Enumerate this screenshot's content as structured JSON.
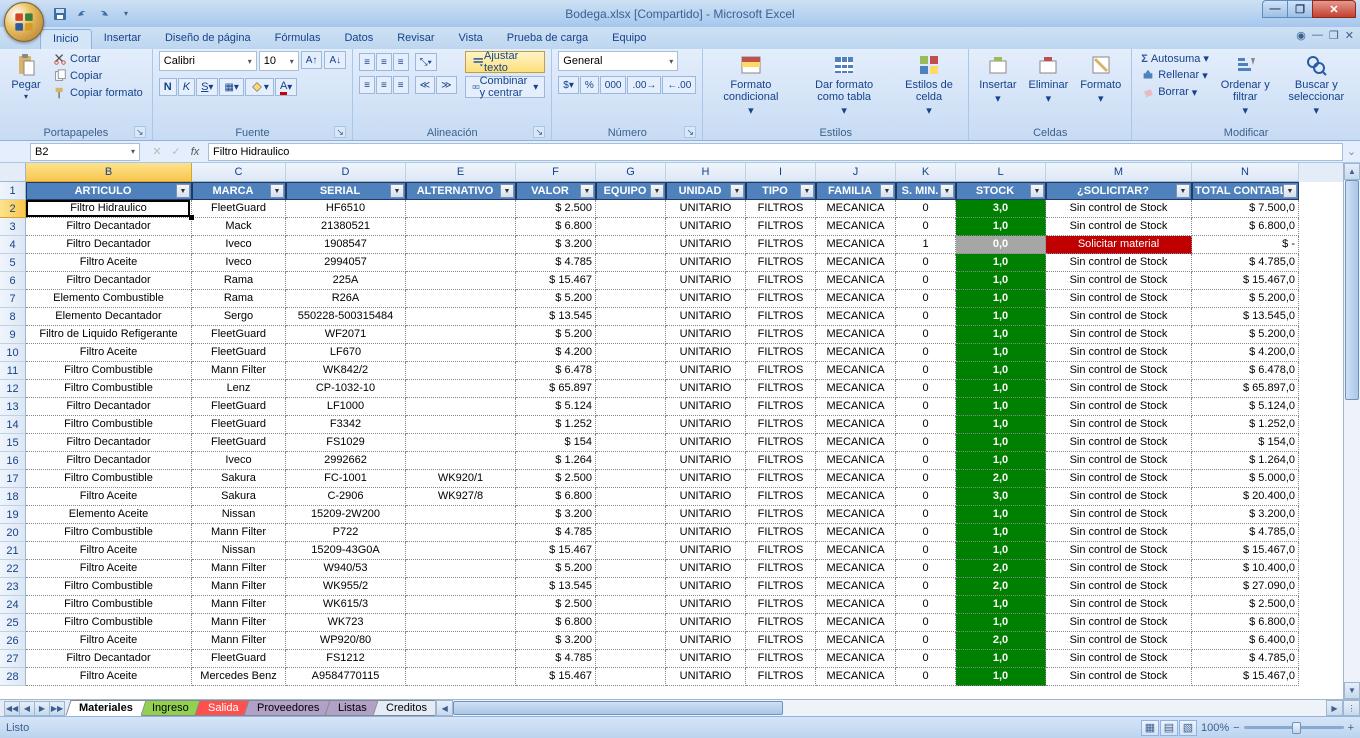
{
  "window": {
    "title": "Bodega.xlsx  [Compartido] - Microsoft Excel"
  },
  "tabs": {
    "items": [
      "Inicio",
      "Insertar",
      "Diseño de página",
      "Fórmulas",
      "Datos",
      "Revisar",
      "Vista",
      "Prueba de carga",
      "Equipo"
    ],
    "active": 0
  },
  "ribbon": {
    "clipboard": {
      "paste": "Pegar",
      "cut": "Cortar",
      "copy": "Copiar",
      "format_painter": "Copiar formato",
      "label": "Portapapeles"
    },
    "font": {
      "name": "Calibri",
      "size": "10",
      "label": "Fuente"
    },
    "alignment": {
      "wrap": "Ajustar texto",
      "merge": "Combinar y centrar",
      "label": "Alineación"
    },
    "number": {
      "format": "General",
      "label": "Número"
    },
    "styles": {
      "cond": "Formato condicional",
      "table": "Dar formato como tabla",
      "cell": "Estilos de celda",
      "label": "Estilos"
    },
    "cells": {
      "insert": "Insertar",
      "delete": "Eliminar",
      "format": "Formato",
      "label": "Celdas"
    },
    "editing": {
      "sum": "Autosuma",
      "fill": "Rellenar",
      "clear": "Borrar",
      "sort": "Ordenar y filtrar",
      "find": "Buscar y seleccionar",
      "label": "Modificar"
    }
  },
  "namebox": "B2",
  "formula": "Filtro Hidraulico",
  "columns": [
    {
      "letter": "B",
      "width": 166,
      "title": "ARTICULO",
      "sel": true
    },
    {
      "letter": "C",
      "width": 94,
      "title": "MARCA"
    },
    {
      "letter": "D",
      "width": 120,
      "title": "SERIAL"
    },
    {
      "letter": "E",
      "width": 110,
      "title": "ALTERNATIVO"
    },
    {
      "letter": "F",
      "width": 80,
      "title": "VALOR"
    },
    {
      "letter": "G",
      "width": 70,
      "title": "EQUIPO"
    },
    {
      "letter": "H",
      "width": 80,
      "title": "UNIDAD"
    },
    {
      "letter": "I",
      "width": 70,
      "title": "TIPO"
    },
    {
      "letter": "J",
      "width": 80,
      "title": "FAMILIA"
    },
    {
      "letter": "K",
      "width": 60,
      "title": "S. MIN."
    },
    {
      "letter": "L",
      "width": 90,
      "title": "STOCK"
    },
    {
      "letter": "M",
      "width": 146,
      "title": "¿SOLICITAR?"
    },
    {
      "letter": "N",
      "width": 107,
      "title": "TOTAL CONTABLE"
    }
  ],
  "rows": [
    {
      "n": 2,
      "d": [
        "Filtro Hidraulico",
        "FleetGuard",
        "HF6510",
        "",
        "$      2.500",
        "",
        "UNITARIO",
        "FILTROS",
        "MECANICA",
        "0",
        "3,0",
        "Sin control de Stock",
        "$           7.500,0"
      ]
    },
    {
      "n": 3,
      "d": [
        "Filtro Decantador",
        "Mack",
        "21380521",
        "",
        "$      6.800",
        "",
        "UNITARIO",
        "FILTROS",
        "MECANICA",
        "0",
        "1,0",
        "Sin control de Stock",
        "$           6.800,0"
      ]
    },
    {
      "n": 4,
      "d": [
        "Filtro Decantador",
        "Iveco",
        "1908547",
        "",
        "$      3.200",
        "",
        "UNITARIO",
        "FILTROS",
        "MECANICA",
        "1",
        "0,0",
        "Solicitar material",
        "$                  -"
      ],
      "stock": "gray",
      "sol": "red"
    },
    {
      "n": 5,
      "d": [
        "Filtro Aceite",
        "Iveco",
        "2994057",
        "",
        "$      4.785",
        "",
        "UNITARIO",
        "FILTROS",
        "MECANICA",
        "0",
        "1,0",
        "Sin control de Stock",
        "$           4.785,0"
      ]
    },
    {
      "n": 6,
      "d": [
        "Filtro Decantador",
        "Rama",
        "225A",
        "",
        "$    15.467",
        "",
        "UNITARIO",
        "FILTROS",
        "MECANICA",
        "0",
        "1,0",
        "Sin control de Stock",
        "$         15.467,0"
      ]
    },
    {
      "n": 7,
      "d": [
        "Elemento Combustible",
        "Rama",
        "R26A",
        "",
        "$      5.200",
        "",
        "UNITARIO",
        "FILTROS",
        "MECANICA",
        "0",
        "1,0",
        "Sin control de Stock",
        "$           5.200,0"
      ]
    },
    {
      "n": 8,
      "d": [
        "Elemento Decantador",
        "Sergo",
        "550228-500315484",
        "",
        "$    13.545",
        "",
        "UNITARIO",
        "FILTROS",
        "MECANICA",
        "0",
        "1,0",
        "Sin control de Stock",
        "$         13.545,0"
      ]
    },
    {
      "n": 9,
      "d": [
        "Filtro de Liquido Refigerante",
        "FleetGuard",
        "WF2071",
        "",
        "$      5.200",
        "",
        "UNITARIO",
        "FILTROS",
        "MECANICA",
        "0",
        "1,0",
        "Sin control de Stock",
        "$           5.200,0"
      ]
    },
    {
      "n": 10,
      "d": [
        "Filtro Aceite",
        "FleetGuard",
        "LF670",
        "",
        "$      4.200",
        "",
        "UNITARIO",
        "FILTROS",
        "MECANICA",
        "0",
        "1,0",
        "Sin control de Stock",
        "$           4.200,0"
      ]
    },
    {
      "n": 11,
      "d": [
        "Filtro Combustible",
        "Mann Filter",
        "WK842/2",
        "",
        "$      6.478",
        "",
        "UNITARIO",
        "FILTROS",
        "MECANICA",
        "0",
        "1,0",
        "Sin control de Stock",
        "$           6.478,0"
      ]
    },
    {
      "n": 12,
      "d": [
        "Filtro Combustible",
        "Lenz",
        "CP-1032-10",
        "",
        "$    65.897",
        "",
        "UNITARIO",
        "FILTROS",
        "MECANICA",
        "0",
        "1,0",
        "Sin control de Stock",
        "$         65.897,0"
      ]
    },
    {
      "n": 13,
      "d": [
        "Filtro Decantador",
        "FleetGuard",
        "LF1000",
        "",
        "$      5.124",
        "",
        "UNITARIO",
        "FILTROS",
        "MECANICA",
        "0",
        "1,0",
        "Sin control de Stock",
        "$           5.124,0"
      ]
    },
    {
      "n": 14,
      "d": [
        "Filtro Combustible",
        "FleetGuard",
        "F3342",
        "",
        "$      1.252",
        "",
        "UNITARIO",
        "FILTROS",
        "MECANICA",
        "0",
        "1,0",
        "Sin control de Stock",
        "$           1.252,0"
      ]
    },
    {
      "n": 15,
      "d": [
        "Filtro Decantador",
        "FleetGuard",
        "FS1029",
        "",
        "$         154",
        "",
        "UNITARIO",
        "FILTROS",
        "MECANICA",
        "0",
        "1,0",
        "Sin control de Stock",
        "$             154,0"
      ]
    },
    {
      "n": 16,
      "d": [
        "Filtro Decantador",
        "Iveco",
        "2992662",
        "",
        "$      1.264",
        "",
        "UNITARIO",
        "FILTROS",
        "MECANICA",
        "0",
        "1,0",
        "Sin control de Stock",
        "$           1.264,0"
      ]
    },
    {
      "n": 17,
      "d": [
        "Filtro Combustible",
        "Sakura",
        "FC-1001",
        "WK920/1",
        "$      2.500",
        "",
        "UNITARIO",
        "FILTROS",
        "MECANICA",
        "0",
        "2,0",
        "Sin control de Stock",
        "$           5.000,0"
      ]
    },
    {
      "n": 18,
      "d": [
        "Filtro Aceite",
        "Sakura",
        "C-2906",
        "WK927/8",
        "$      6.800",
        "",
        "UNITARIO",
        "FILTROS",
        "MECANICA",
        "0",
        "3,0",
        "Sin control de Stock",
        "$         20.400,0"
      ]
    },
    {
      "n": 19,
      "d": [
        "Elemento Aceite",
        "Nissan",
        "15209-2W200",
        "",
        "$      3.200",
        "",
        "UNITARIO",
        "FILTROS",
        "MECANICA",
        "0",
        "1,0",
        "Sin control de Stock",
        "$           3.200,0"
      ]
    },
    {
      "n": 20,
      "d": [
        "Filtro Combustible",
        "Mann Filter",
        "P722",
        "",
        "$      4.785",
        "",
        "UNITARIO",
        "FILTROS",
        "MECANICA",
        "0",
        "1,0",
        "Sin control de Stock",
        "$           4.785,0"
      ]
    },
    {
      "n": 21,
      "d": [
        "Filtro Aceite",
        "Nissan",
        "15209-43G0A",
        "",
        "$    15.467",
        "",
        "UNITARIO",
        "FILTROS",
        "MECANICA",
        "0",
        "1,0",
        "Sin control de Stock",
        "$         15.467,0"
      ]
    },
    {
      "n": 22,
      "d": [
        "Filtro Aceite",
        "Mann Filter",
        "W940/53",
        "",
        "$      5.200",
        "",
        "UNITARIO",
        "FILTROS",
        "MECANICA",
        "0",
        "2,0",
        "Sin control de Stock",
        "$         10.400,0"
      ]
    },
    {
      "n": 23,
      "d": [
        "Filtro Combustible",
        "Mann Filter",
        "WK955/2",
        "",
        "$    13.545",
        "",
        "UNITARIO",
        "FILTROS",
        "MECANICA",
        "0",
        "2,0",
        "Sin control de Stock",
        "$         27.090,0"
      ]
    },
    {
      "n": 24,
      "d": [
        "Filtro Combustible",
        "Mann Filter",
        "WK615/3",
        "",
        "$      2.500",
        "",
        "UNITARIO",
        "FILTROS",
        "MECANICA",
        "0",
        "1,0",
        "Sin control de Stock",
        "$           2.500,0"
      ]
    },
    {
      "n": 25,
      "d": [
        "Filtro Combustible",
        "Mann Filter",
        "WK723",
        "",
        "$      6.800",
        "",
        "UNITARIO",
        "FILTROS",
        "MECANICA",
        "0",
        "1,0",
        "Sin control de Stock",
        "$           6.800,0"
      ]
    },
    {
      "n": 26,
      "d": [
        "Filtro Aceite",
        "Mann Filter",
        "WP920/80",
        "",
        "$      3.200",
        "",
        "UNITARIO",
        "FILTROS",
        "MECANICA",
        "0",
        "2,0",
        "Sin control de Stock",
        "$           6.400,0"
      ]
    },
    {
      "n": 27,
      "d": [
        "Filtro Decantador",
        "FleetGuard",
        "FS1212",
        "",
        "$      4.785",
        "",
        "UNITARIO",
        "FILTROS",
        "MECANICA",
        "0",
        "1,0",
        "Sin control de Stock",
        "$           4.785,0"
      ]
    },
    {
      "n": 28,
      "d": [
        "Filtro Aceite",
        "Mercedes Benz",
        "A9584770115",
        "",
        "$    15.467",
        "",
        "UNITARIO",
        "FILTROS",
        "MECANICA",
        "0",
        "1,0",
        "Sin control de Stock",
        "$         15.467,0"
      ]
    }
  ],
  "sheets": [
    {
      "name": "Materiales",
      "cls": "active"
    },
    {
      "name": "Ingreso",
      "cls": "green"
    },
    {
      "name": "Salida",
      "cls": "red"
    },
    {
      "name": "Proveedores",
      "cls": "purple"
    },
    {
      "name": "Listas",
      "cls": "purple"
    },
    {
      "name": "Creditos",
      "cls": ""
    }
  ],
  "status": {
    "ready": "Listo",
    "zoom": "100%"
  }
}
